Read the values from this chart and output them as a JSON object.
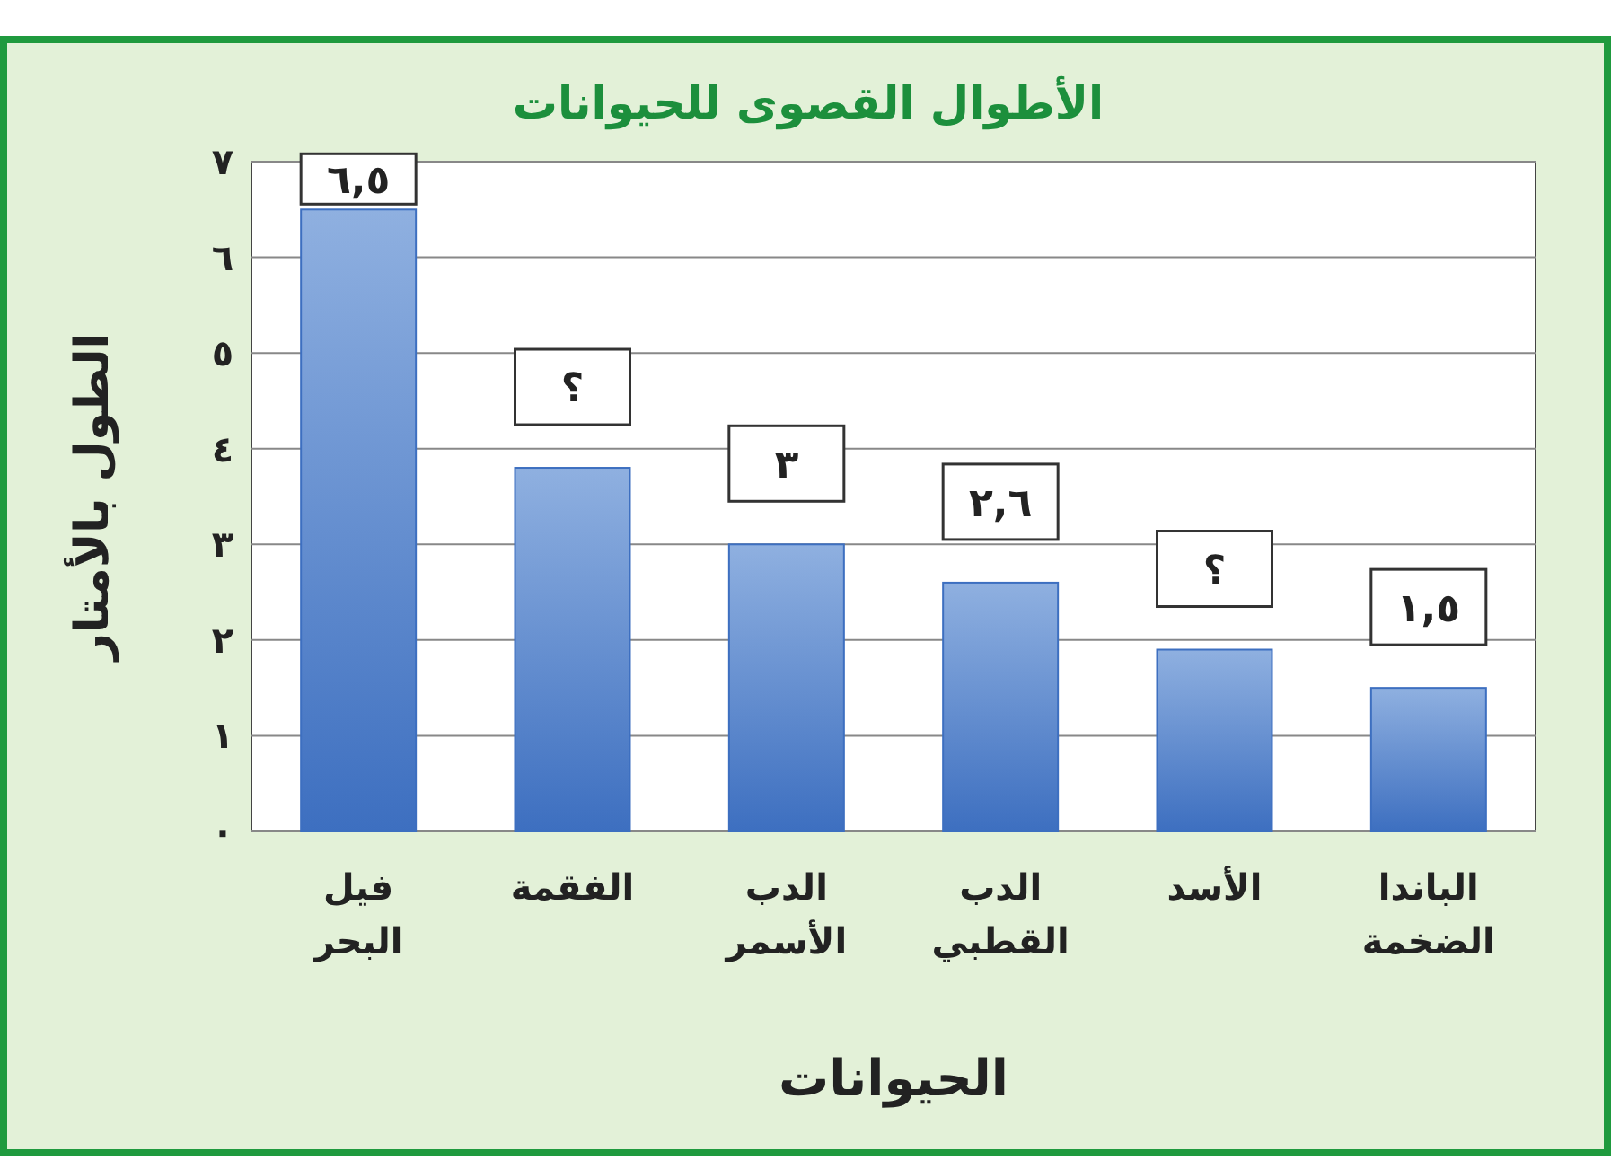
{
  "chart_data": {
    "type": "bar",
    "title": "الأطوال القصوى للحيوانات",
    "xlabel": "الحيوانات",
    "ylabel": "الطول بالأمتار",
    "categories": [
      "فيل البحر",
      "الفقمة",
      "الدب الأسمر",
      "الدب القطبي",
      "الأسد",
      "الباندا الضخمة"
    ],
    "values": [
      6.5,
      3.8,
      3,
      2.6,
      1.9,
      1.5
    ],
    "value_labels": [
      "٦,٥",
      "؟",
      "٣",
      "٢,٦",
      "؟",
      "١,٥"
    ],
    "color": "#3d6fc0",
    "ylim": [
      0,
      7
    ],
    "yticks": [
      {
        "value": 0,
        "label": "٠"
      },
      {
        "value": 1,
        "label": "١"
      },
      {
        "value": 2,
        "label": "٢"
      },
      {
        "value": 3,
        "label": "٣"
      },
      {
        "value": 4,
        "label": "٤"
      },
      {
        "value": 5,
        "label": "٥"
      },
      {
        "value": 6,
        "label": "٦"
      },
      {
        "value": 7,
        "label": "٧"
      }
    ],
    "grid": "y"
  }
}
